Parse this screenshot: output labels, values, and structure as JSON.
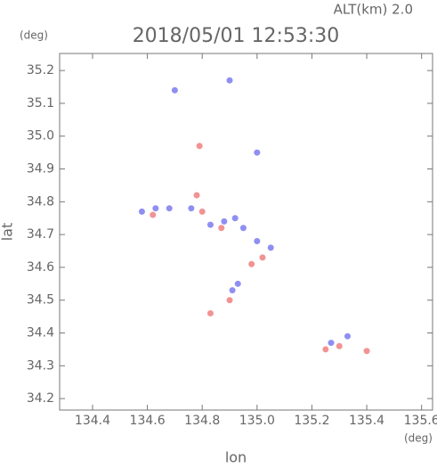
{
  "chart_data": {
    "type": "scatter",
    "title": "2018/05/01 12:53:30",
    "subtitle": "ALT(km) 2.0",
    "x_unit": "(deg)",
    "y_unit": "(deg)",
    "x_label": "lon",
    "y_label": "lat",
    "xlim": [
      134.28,
      135.64
    ],
    "ylim": [
      34.165,
      35.252
    ],
    "xticks": [
      134.4,
      134.6,
      134.8,
      {
        "value": 135,
        "label": "135.0"
      },
      135.2,
      135.4,
      135.6
    ],
    "yticks": [
      34.2,
      34.3,
      34.4,
      34.5,
      34.6,
      34.7,
      34.8,
      34.9,
      {
        "value": 35,
        "label": "35.0"
      },
      35.1,
      35.2
    ],
    "series": [
      {
        "color": "#7b7bf0",
        "x": [
          134.58,
          134.63,
          134.68,
          134.76,
          134.83,
          134.88,
          134.92,
          134.95,
          135.0,
          135.05,
          134.91,
          134.93,
          135.27,
          135.33,
          135.0,
          134.9,
          134.7
        ],
        "values": [
          34.77,
          34.78,
          34.78,
          34.78,
          34.73,
          34.74,
          34.75,
          34.72,
          34.68,
          34.66,
          34.53,
          34.55,
          34.37,
          34.39,
          34.95,
          35.17,
          35.14
        ]
      },
      {
        "color": "#f08080",
        "x": [
          134.62,
          134.78,
          134.8,
          134.87,
          135.02,
          134.98,
          134.9,
          134.83,
          135.25,
          135.3,
          135.4,
          134.79
        ],
        "values": [
          34.76,
          34.82,
          34.77,
          34.72,
          34.63,
          34.61,
          34.5,
          34.46,
          34.35,
          34.36,
          34.345,
          34.97
        ]
      }
    ]
  }
}
